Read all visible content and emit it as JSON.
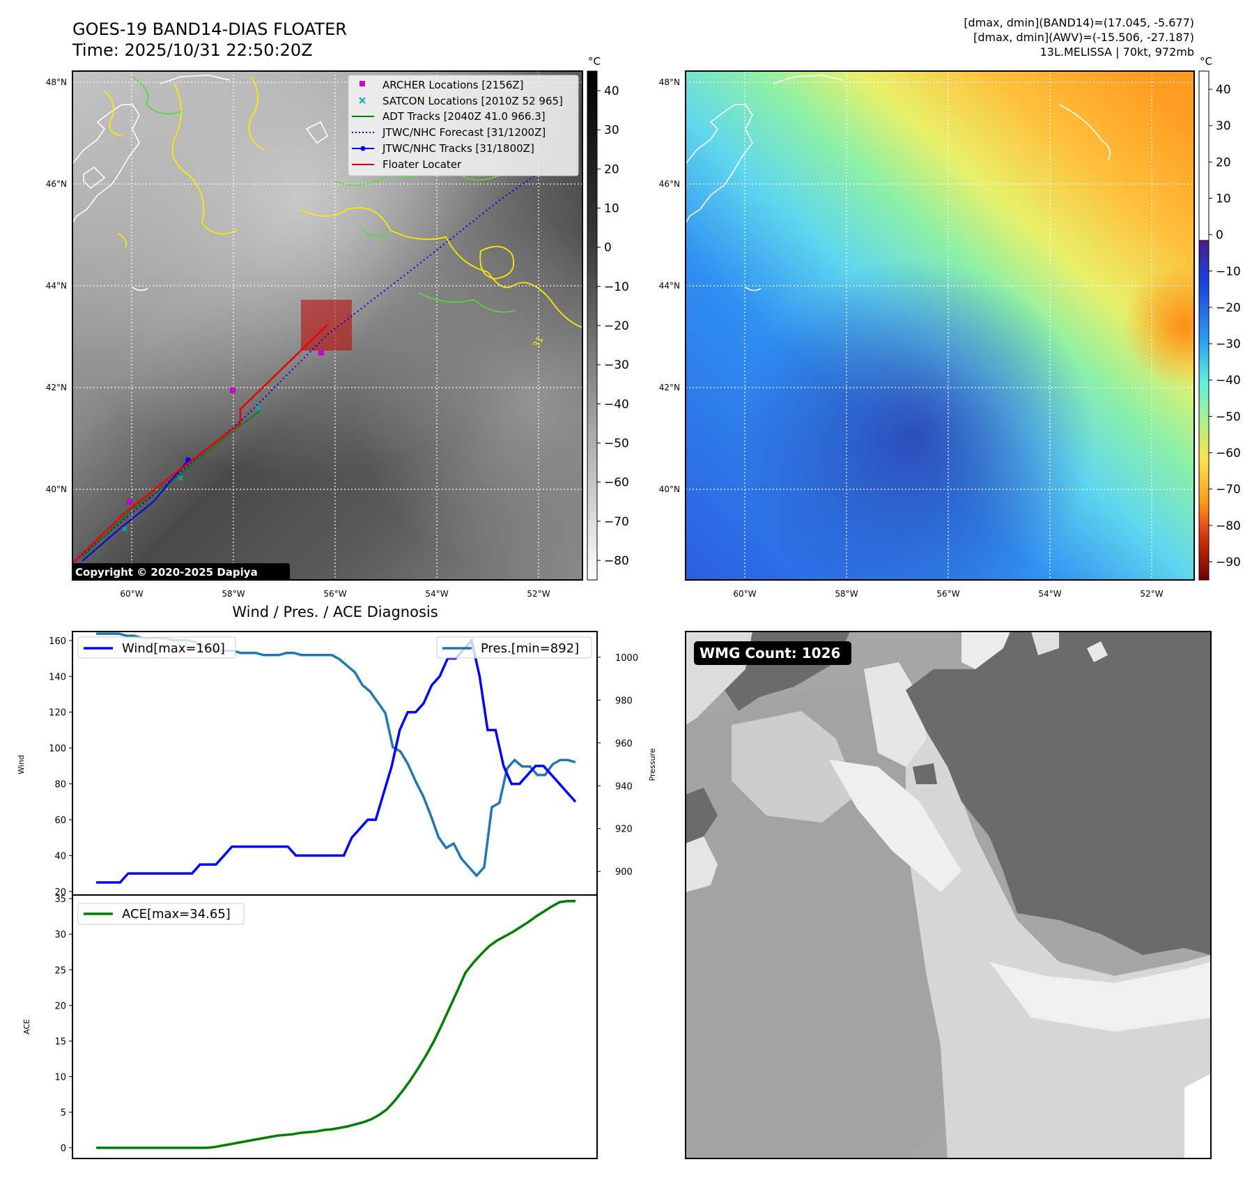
{
  "header": {
    "title_line1": "GOES-19 BAND14-DIAS FLOATER",
    "title_line2": "Time: 2025/10/31 22:50:20Z",
    "info_line1": "[dmax, dmin](BAND14)=(17.045, -5.677)",
    "info_line2": "[dmax, dmin](AWV)=(-15.506, -27.187)",
    "info_line3": "13L.MELISSA | 70kt, 972mb"
  },
  "colors": {
    "archer": "#cc00cc",
    "satcon": "#00b0b0",
    "adt": "#008000",
    "forecast": "#0000dd",
    "track": "#0000ee",
    "floater": "#ee0000",
    "wind": "#0000ff",
    "pressure": "#1f77b4",
    "ace": "#008000"
  },
  "map_axes": {
    "lon_labels": [
      "60°W",
      "58°W",
      "56°W",
      "54°W",
      "52°W"
    ],
    "lat_labels": [
      "48°N",
      "46°N",
      "44°N",
      "42°N",
      "40°N"
    ]
  },
  "ir_map": {
    "legend": [
      {
        "label": "ARCHER Locations [2156Z]",
        "icon": "square-marker"
      },
      {
        "label": "SATCON Locations [2010Z 52 965]",
        "icon": "x-marker"
      },
      {
        "label": "ADT Tracks [2040Z 41.0 966.3]",
        "icon": "solid-line"
      },
      {
        "label": "JTWC/NHC Forecast [31/1200Z]",
        "icon": "dotted-line"
      },
      {
        "label": "JTWC/NHC Tracks [31/1800Z]",
        "icon": "line-dot"
      },
      {
        "label": "Floater Locater",
        "icon": "solid-line"
      }
    ],
    "copyright": "Copyright © 2020-2025 Dapiya",
    "contour_label": "31"
  },
  "ir_colorbar": {
    "unit": "°C",
    "ticks": [
      "40",
      "30",
      "20",
      "10",
      "0",
      "−10",
      "−20",
      "−30",
      "−40",
      "−50",
      "−60",
      "−70",
      "−80"
    ]
  },
  "wv_colorbar": {
    "unit": "°C",
    "ticks": [
      "40",
      "30",
      "20",
      "10",
      "0",
      "−10",
      "−20",
      "−30",
      "−40",
      "−50",
      "−60",
      "−70",
      "−80",
      "−90"
    ]
  },
  "diagnosis": {
    "title": "Wind / Pres. / ACE Diagnosis",
    "wind_ylabel": "Wind",
    "pres_ylabel": "Pressure",
    "ace_ylabel": "ACE",
    "wind_legend": "Wind[max=160]",
    "pres_legend": "Pres.[min=892]",
    "ace_legend": "ACE[max=34.65]",
    "wind_ticks": [
      "160",
      "140",
      "120",
      "100",
      "80",
      "60",
      "40",
      "20"
    ],
    "pres_ticks": [
      "1000",
      "980",
      "960",
      "940",
      "920",
      "900"
    ],
    "ace_ticks": [
      "35",
      "30",
      "25",
      "20",
      "15",
      "10",
      "5",
      "0"
    ]
  },
  "wmg": {
    "label": "WMG Count: 1026"
  },
  "chart_data": [
    {
      "type": "line",
      "title": "Wind / Pres. / ACE Diagnosis",
      "xlabel": "",
      "ylabel": "Wind",
      "ylim": [
        18,
        165
      ],
      "series": [
        {
          "name": "Wind[max=160]",
          "values": [
            25,
            25,
            25,
            25,
            30,
            30,
            30,
            30,
            30,
            30,
            30,
            30,
            30,
            35,
            35,
            35,
            40,
            45,
            45,
            45,
            45,
            45,
            45,
            45,
            45,
            40,
            40,
            40,
            40,
            40,
            40,
            40,
            50,
            55,
            60,
            60,
            75,
            90,
            110,
            120,
            120,
            125,
            135,
            140,
            150,
            150,
            155,
            160,
            140,
            110,
            110,
            90,
            80,
            80,
            85,
            90,
            90,
            85,
            80,
            75,
            70
          ]
        }
      ]
    },
    {
      "type": "line",
      "title": "",
      "ylabel": "Pressure",
      "ylim": [
        889,
        1012
      ],
      "series": [
        {
          "name": "Pres.[min=892]",
          "values": [
            1011,
            1011,
            1011,
            1011,
            1010,
            1010,
            1009,
            1009,
            1009,
            1009,
            1008,
            1008,
            1008,
            1007,
            1005,
            1004,
            1003,
            1003,
            1003,
            1002,
            1002,
            1002,
            1001,
            1001,
            1001,
            1002,
            1002,
            1001,
            1001,
            1001,
            1001,
            1001,
            999,
            996,
            993,
            987,
            984,
            979,
            974,
            958,
            956,
            950,
            942,
            935,
            926,
            916,
            911,
            913,
            906,
            902,
            898,
            902,
            930,
            932,
            948,
            952,
            949,
            949,
            945,
            945,
            950,
            952,
            952,
            951
          ]
        }
      ]
    },
    {
      "type": "line",
      "title": "",
      "ylabel": "ACE",
      "ylim": [
        -1.5,
        35.5
      ],
      "series": [
        {
          "name": "ACE[max=34.65]",
          "values": [
            0,
            0,
            0,
            0,
            0,
            0,
            0,
            0,
            0,
            0,
            0,
            0,
            0,
            0,
            0,
            0.1,
            0.3,
            0.5,
            0.7,
            0.9,
            1.1,
            1.3,
            1.5,
            1.7,
            1.8,
            1.9,
            2.1,
            2.2,
            2.3,
            2.5,
            2.6,
            2.8,
            3.0,
            3.3,
            3.6,
            4.0,
            4.6,
            5.4,
            6.6,
            8.0,
            9.5,
            11.2,
            13.0,
            15.0,
            17.3,
            19.7,
            22.1,
            24.6,
            26.0,
            27.2,
            28.3,
            29.1,
            29.7,
            30.3,
            31.0,
            31.7,
            32.5,
            33.2,
            33.9,
            34.5,
            34.65,
            34.65
          ]
        }
      ]
    }
  ]
}
